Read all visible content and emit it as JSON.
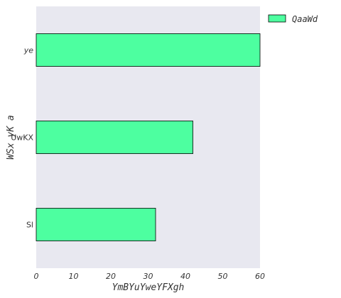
{
  "chart_data": {
    "type": "bar",
    "orientation": "horizontal",
    "categories": [
      "ye",
      "UwKX",
      "Sl"
    ],
    "series": [
      {
        "name": "QaaWd",
        "values": [
          60,
          42,
          32
        ]
      }
    ],
    "xlabel": "YmBYuYweYFXgh",
    "ylabel": "WSx yK a",
    "xlim": [
      0,
      60
    ],
    "xticks": [
      0,
      10,
      20,
      30,
      40,
      50,
      60
    ],
    "grid": false,
    "legend_position": "outside-top-right",
    "colors": {
      "bar_fill": "#4dffa0",
      "bar_edge": "#000000",
      "plot_background": "#e8e8f0"
    }
  }
}
